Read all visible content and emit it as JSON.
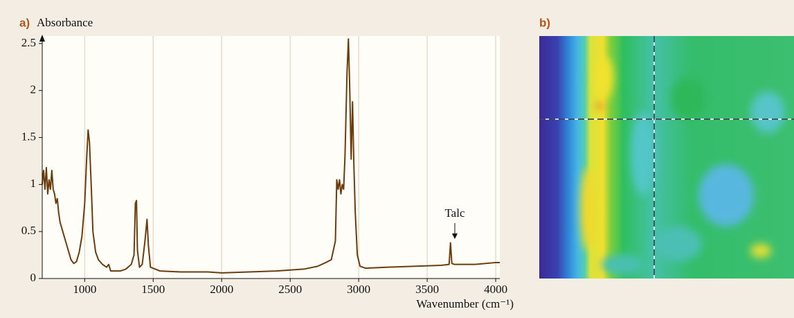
{
  "chart_data": {
    "type": "line",
    "panel_label": "a)",
    "y_label": "Absorbance",
    "x_label": "Wavenumber (cm⁻¹)",
    "annotation": "Talc",
    "image_panel_label": "b)",
    "color": "#6b3d0c",
    "grid": "x",
    "xlim": [
      690,
      4030
    ],
    "ylim": [
      0,
      2.58
    ],
    "xticks": [
      1000,
      1500,
      2000,
      2500,
      3000,
      3500,
      4000
    ],
    "yticks": [
      0,
      0.5,
      1,
      1.5,
      2,
      2.5
    ],
    "x": [
      690,
      700,
      710,
      720,
      730,
      740,
      750,
      760,
      770,
      780,
      790,
      800,
      810,
      820,
      840,
      860,
      880,
      900,
      920,
      940,
      960,
      980,
      1000,
      1015,
      1025,
      1035,
      1050,
      1060,
      1080,
      1100,
      1130,
      1160,
      1175,
      1190,
      1220,
      1260,
      1300,
      1340,
      1360,
      1370,
      1378,
      1385,
      1400,
      1420,
      1440,
      1455,
      1465,
      1480,
      1550,
      1700,
      1900,
      2000,
      2200,
      2400,
      2600,
      2700,
      2760,
      2800,
      2830,
      2840,
      2850,
      2860,
      2870,
      2880,
      2890,
      2900,
      2915,
      2925,
      2935,
      2945,
      2955,
      2965,
      2975,
      2990,
      3010,
      3050,
      3200,
      3400,
      3600,
      3660,
      3670,
      3680,
      3700,
      3850,
      4000,
      4030
    ],
    "values": [
      1.0,
      1.15,
      0.95,
      1.18,
      0.9,
      1.05,
      0.95,
      1.15,
      0.95,
      0.9,
      0.8,
      0.85,
      0.7,
      0.6,
      0.5,
      0.4,
      0.3,
      0.2,
      0.16,
      0.18,
      0.28,
      0.45,
      0.8,
      1.3,
      1.58,
      1.45,
      0.9,
      0.5,
      0.28,
      0.2,
      0.15,
      0.12,
      0.15,
      0.08,
      0.08,
      0.08,
      0.1,
      0.15,
      0.25,
      0.8,
      0.83,
      0.3,
      0.12,
      0.15,
      0.4,
      0.63,
      0.35,
      0.12,
      0.08,
      0.07,
      0.07,
      0.06,
      0.07,
      0.08,
      0.1,
      0.13,
      0.17,
      0.2,
      0.4,
      1.05,
      0.95,
      1.05,
      0.9,
      1.0,
      0.95,
      1.3,
      2.2,
      2.55,
      2.0,
      1.27,
      1.88,
      1.2,
      0.7,
      0.25,
      0.13,
      0.11,
      0.12,
      0.13,
      0.14,
      0.15,
      0.38,
      0.16,
      0.15,
      0.15,
      0.17,
      0.17
    ]
  }
}
